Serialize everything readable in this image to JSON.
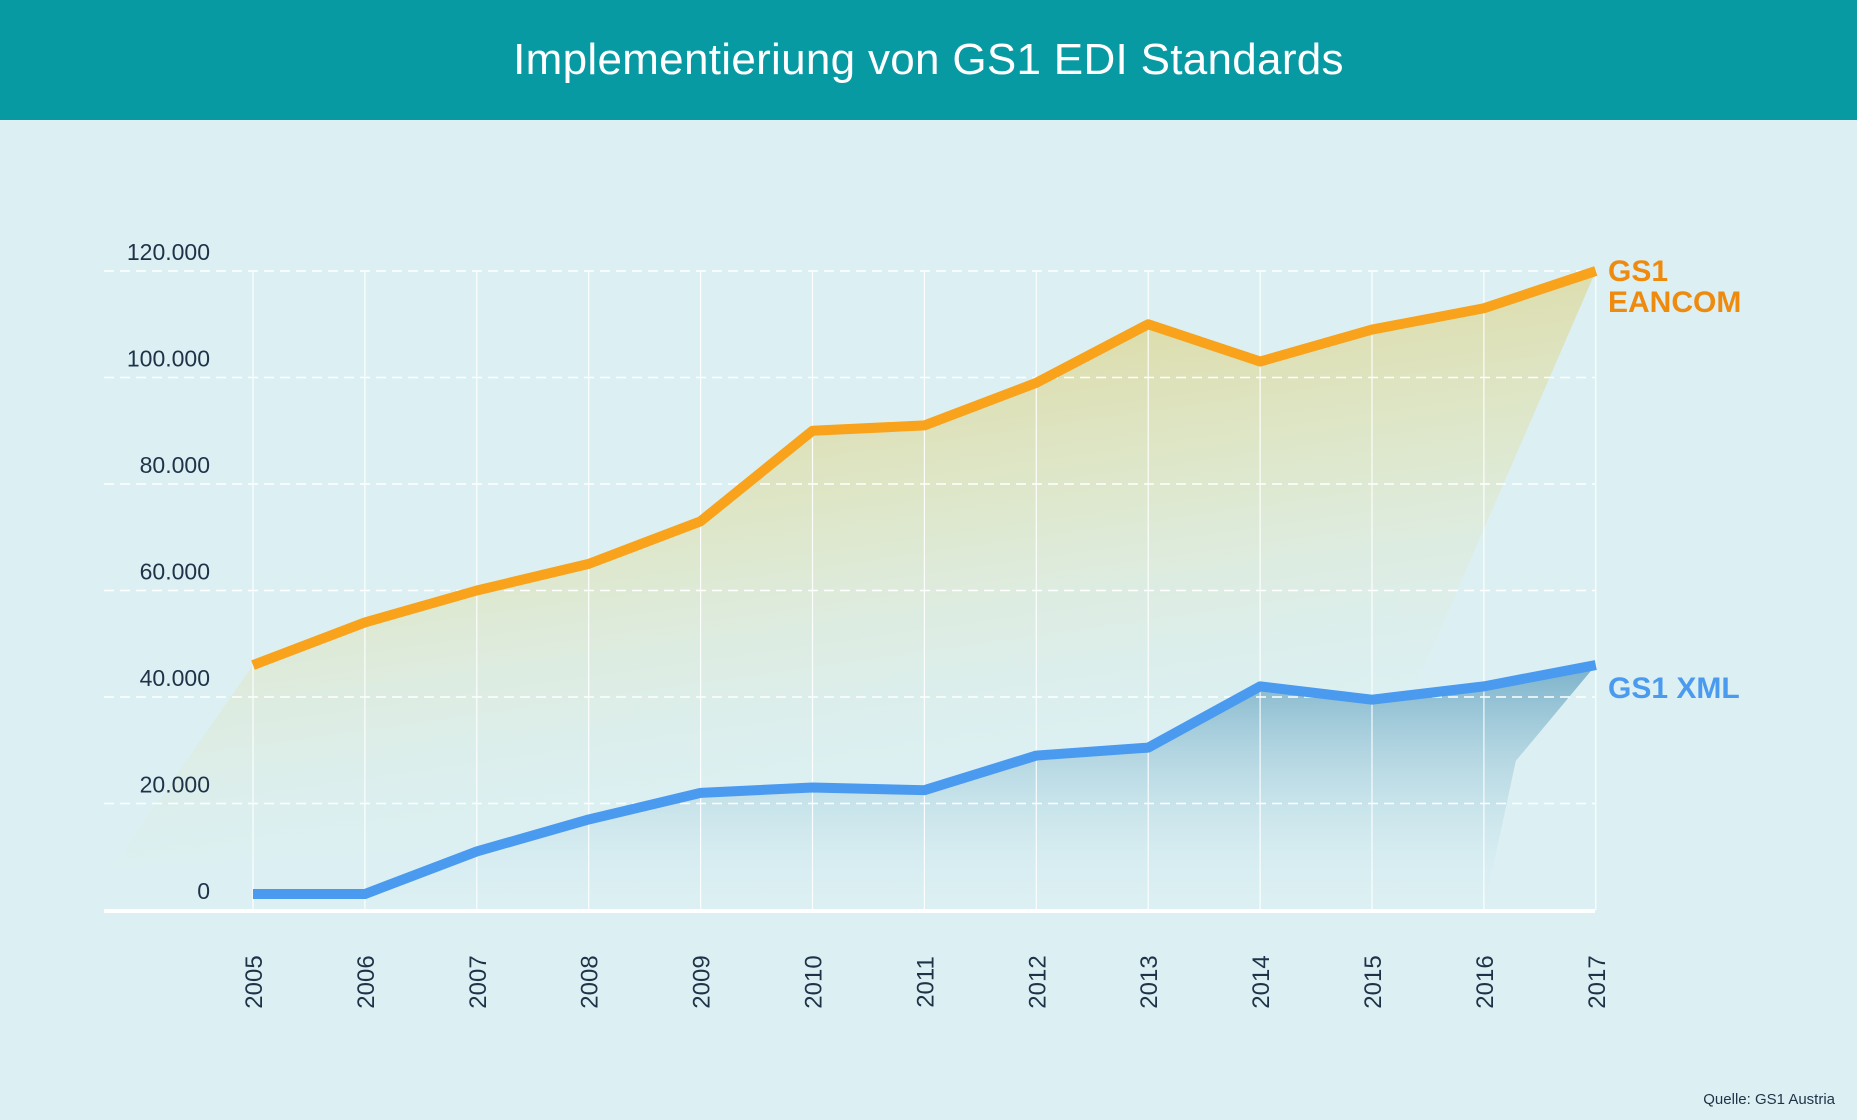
{
  "title": "Implementieriung von GS1 EDI Standards",
  "source": "Quelle: GS1 Austria",
  "colors": {
    "header": "#079aa3",
    "background": "#dcf0f3",
    "eancom": "#f9a21b",
    "eancom_label": "#ee8a0e",
    "xml": "#4a9af0",
    "xml_label": "#4a9af0",
    "axis_text": "#1e3348",
    "grid": "#ffffff"
  },
  "chart_data": {
    "type": "line",
    "categories": [
      "2005",
      "2006",
      "2007",
      "2008",
      "2009",
      "2010",
      "2011",
      "2012",
      "2013",
      "2014",
      "2015",
      "2016",
      "2017"
    ],
    "ylim": [
      0,
      120000
    ],
    "yticks": [
      0,
      20000,
      40000,
      60000,
      80000,
      100000,
      120000
    ],
    "ytick_labels": [
      "0",
      "20.000",
      "40.000",
      "60.000",
      "80.000",
      "100.000",
      "120.000"
    ],
    "grid": true,
    "series": [
      {
        "key": "eancom",
        "name_lines": [
          "GS1",
          "EANCOM"
        ],
        "values": [
          46000,
          54000,
          60000,
          65000,
          73000,
          90000,
          91000,
          99000,
          110000,
          103000,
          109000,
          113000,
          120000
        ]
      },
      {
        "key": "xml",
        "name_lines": [
          "GS1 XML"
        ],
        "values": [
          3000,
          3000,
          11000,
          17000,
          22000,
          23000,
          22500,
          29000,
          30500,
          42000,
          39500,
          42000,
          46000
        ]
      }
    ]
  }
}
